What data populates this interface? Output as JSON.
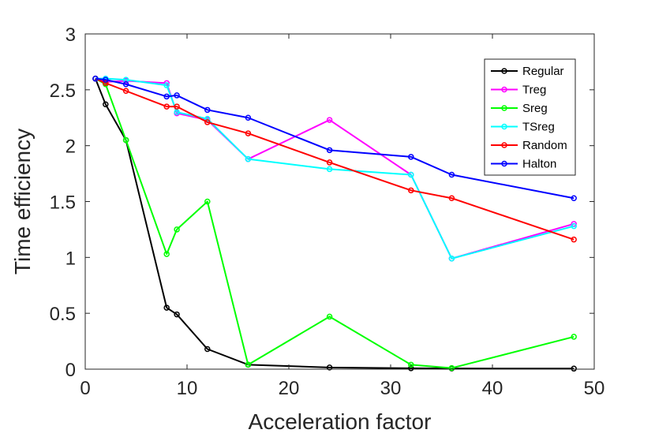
{
  "chart_data": {
    "type": "line",
    "title": "",
    "xlabel": "Acceleration factor",
    "ylabel": "Time efficiency",
    "xlim": [
      0,
      50
    ],
    "ylim": [
      0,
      3
    ],
    "xticks": [
      0,
      10,
      20,
      30,
      40,
      50
    ],
    "yticks": [
      0,
      0.5,
      1,
      1.5,
      2,
      2.5,
      3
    ],
    "xtick_labels": [
      "0",
      "10",
      "20",
      "30",
      "40",
      "50"
    ],
    "ytick_labels": [
      "0",
      "0.5",
      "1",
      "1.5",
      "2",
      "2.5",
      "3"
    ],
    "grid": false,
    "legend_position": "top-right",
    "series": [
      {
        "name": "Regular",
        "color": "#000000",
        "x": [
          1,
          2,
          4,
          8,
          9,
          12,
          16,
          24,
          32,
          36,
          48
        ],
        "y": [
          2.6,
          2.37,
          2.05,
          0.55,
          0.49,
          0.18,
          0.04,
          0.015,
          0.008,
          0.006,
          0.005
        ]
      },
      {
        "name": "Treg",
        "color": "#ff00ff",
        "x": [
          1,
          2,
          4,
          8,
          9,
          12,
          16,
          24,
          32,
          36,
          48
        ],
        "y": [
          2.6,
          2.57,
          2.58,
          2.56,
          2.29,
          2.23,
          1.88,
          2.23,
          1.74,
          0.99,
          1.3
        ]
      },
      {
        "name": "Sreg",
        "color": "#00ff00",
        "x": [
          1,
          2,
          4,
          8,
          9,
          12,
          16,
          24,
          32,
          36,
          48
        ],
        "y": [
          2.6,
          2.55,
          2.05,
          1.03,
          1.25,
          1.5,
          0.04,
          0.47,
          0.04,
          0.01,
          0.29
        ]
      },
      {
        "name": "TSreg",
        "color": "#00ffff",
        "x": [
          1,
          2,
          4,
          8,
          9,
          12,
          16,
          24,
          32,
          36,
          48
        ],
        "y": [
          2.6,
          2.6,
          2.59,
          2.54,
          2.3,
          2.24,
          1.88,
          1.79,
          1.74,
          0.99,
          1.28
        ]
      },
      {
        "name": "Random",
        "color": "#ff0000",
        "x": [
          1,
          2,
          4,
          8,
          9,
          12,
          16,
          24,
          32,
          36,
          48
        ],
        "y": [
          2.6,
          2.56,
          2.49,
          2.35,
          2.35,
          2.21,
          2.11,
          1.85,
          1.6,
          1.53,
          1.16
        ]
      },
      {
        "name": "Halton",
        "color": "#0000ff",
        "x": [
          1,
          2,
          4,
          8,
          9,
          12,
          16,
          24,
          32,
          36,
          48
        ],
        "y": [
          2.6,
          2.59,
          2.55,
          2.44,
          2.45,
          2.32,
          2.25,
          1.96,
          1.9,
          1.74,
          1.53
        ]
      }
    ]
  }
}
